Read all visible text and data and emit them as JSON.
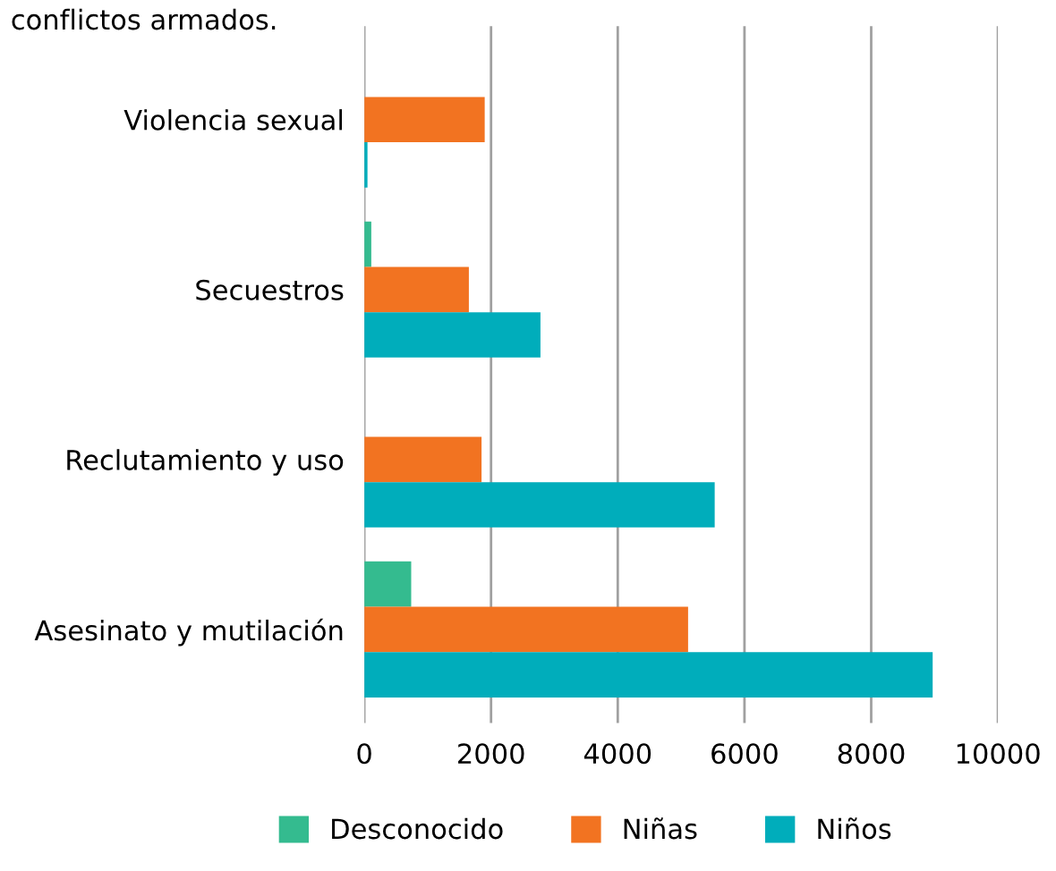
{
  "chart_data": {
    "type": "bar",
    "orientation": "horizontal",
    "annotations": [
      "conflictos armados."
    ],
    "categories": [
      "Violencia sexual",
      "Secuestros",
      "Reclutamiento y uso",
      "Asesinato y mutilación"
    ],
    "series": [
      {
        "name": "Desconocido",
        "color": "#34bb8f",
        "values": [
          0,
          110,
          null,
          740
        ]
      },
      {
        "name": "Niñas",
        "color": "#f27321",
        "values": [
          1900,
          1650,
          1850,
          5110
        ]
      },
      {
        "name": "Niños",
        "color": "#00adbb",
        "values": [
          50,
          2780,
          5530,
          8970
        ]
      }
    ],
    "xlim": [
      0,
      10000
    ],
    "xticks": [
      0,
      2000,
      4000,
      6000,
      8000,
      10000
    ],
    "grid": "x",
    "legend": "bottom"
  }
}
